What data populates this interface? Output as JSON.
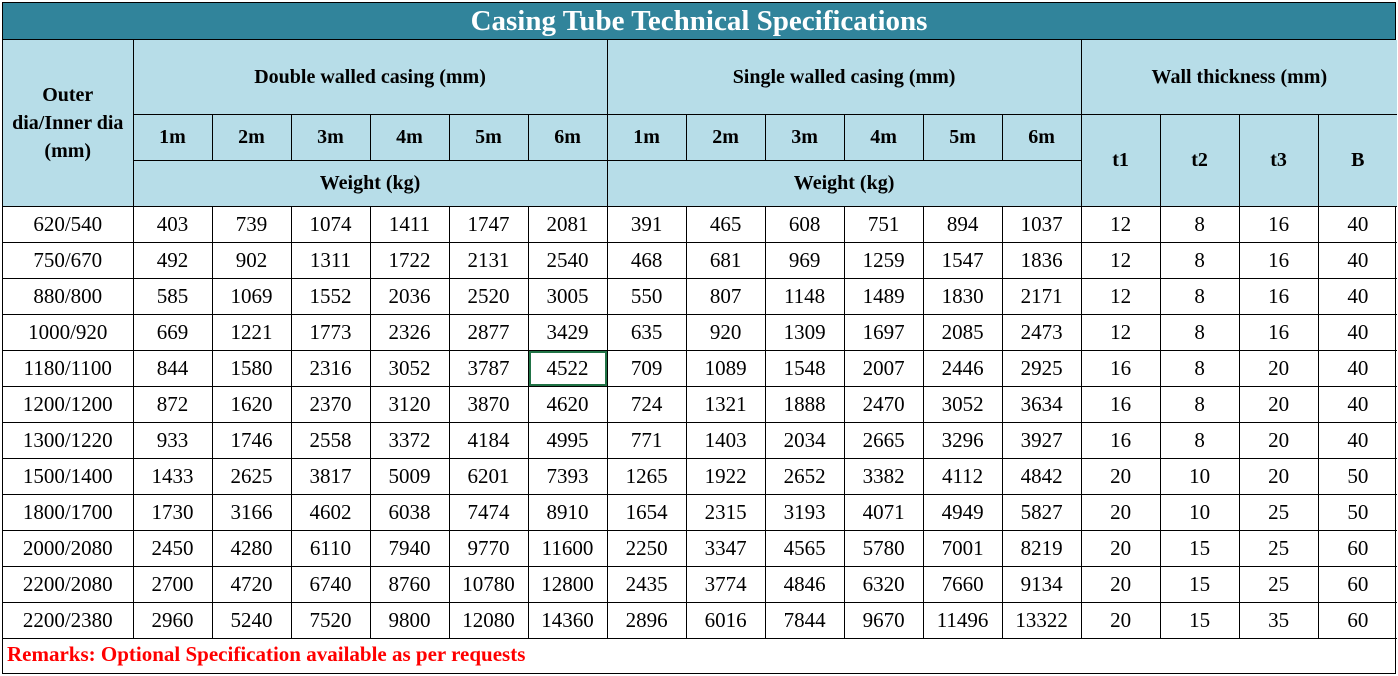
{
  "title": "Casing Tube Technical Specifications",
  "headers": {
    "outer": "Outer dia/Inner dia (mm)",
    "double": "Double walled casing (mm)",
    "single": "Single walled casing (mm)",
    "wall": "Wall thickness (mm)",
    "lengths": [
      "1m",
      "2m",
      "3m",
      "4m",
      "5m",
      "6m"
    ],
    "weight": "Weight (kg)",
    "wall_cols": [
      "t1",
      "t2",
      "t3",
      "B"
    ]
  },
  "rows": [
    {
      "dia": "620/540",
      "double": [
        "403",
        "739",
        "1074",
        "1411",
        "1747",
        "2081"
      ],
      "single": [
        "391",
        "465",
        "608",
        "751",
        "894",
        "1037"
      ],
      "wall": [
        "12",
        "8",
        "16",
        "40"
      ]
    },
    {
      "dia": "750/670",
      "double": [
        "492",
        "902",
        "1311",
        "1722",
        "2131",
        "2540"
      ],
      "single": [
        "468",
        "681",
        "969",
        "1259",
        "1547",
        "1836"
      ],
      "wall": [
        "12",
        "8",
        "16",
        "40"
      ]
    },
    {
      "dia": "880/800",
      "double": [
        "585",
        "1069",
        "1552",
        "2036",
        "2520",
        "3005"
      ],
      "single": [
        "550",
        "807",
        "1148",
        "1489",
        "1830",
        "2171"
      ],
      "wall": [
        "12",
        "8",
        "16",
        "40"
      ]
    },
    {
      "dia": "1000/920",
      "double": [
        "669",
        "1221",
        "1773",
        "2326",
        "2877",
        "3429"
      ],
      "single": [
        "635",
        "920",
        "1309",
        "1697",
        "2085",
        "2473"
      ],
      "wall": [
        "12",
        "8",
        "16",
        "40"
      ]
    },
    {
      "dia": "1180/1100",
      "double": [
        "844",
        "1580",
        "2316",
        "3052",
        "3787",
        "4522"
      ],
      "single": [
        "709",
        "1089",
        "1548",
        "2007",
        "2446",
        "2925"
      ],
      "wall": [
        "16",
        "8",
        "20",
        "40"
      ]
    },
    {
      "dia": "1200/1200",
      "double": [
        "872",
        "1620",
        "2370",
        "3120",
        "3870",
        "4620"
      ],
      "single": [
        "724",
        "1321",
        "1888",
        "2470",
        "3052",
        "3634"
      ],
      "wall": [
        "16",
        "8",
        "20",
        "40"
      ]
    },
    {
      "dia": "1300/1220",
      "double": [
        "933",
        "1746",
        "2558",
        "3372",
        "4184",
        "4995"
      ],
      "single": [
        "771",
        "1403",
        "2034",
        "2665",
        "3296",
        "3927"
      ],
      "wall": [
        "16",
        "8",
        "20",
        "40"
      ]
    },
    {
      "dia": "1500/1400",
      "double": [
        "1433",
        "2625",
        "3817",
        "5009",
        "6201",
        "7393"
      ],
      "single": [
        "1265",
        "1922",
        "2652",
        "3382",
        "4112",
        "4842"
      ],
      "wall": [
        "20",
        "10",
        "20",
        "50"
      ]
    },
    {
      "dia": "1800/1700",
      "double": [
        "1730",
        "3166",
        "4602",
        "6038",
        "7474",
        "8910"
      ],
      "single": [
        "1654",
        "2315",
        "3193",
        "4071",
        "4949",
        "5827"
      ],
      "wall": [
        "20",
        "10",
        "25",
        "50"
      ]
    },
    {
      "dia": "2000/2080",
      "double": [
        "2450",
        "4280",
        "6110",
        "7940",
        "9770",
        "11600"
      ],
      "single": [
        "2250",
        "3347",
        "4565",
        "5780",
        "7001",
        "8219"
      ],
      "wall": [
        "20",
        "15",
        "25",
        "60"
      ]
    },
    {
      "dia": "2200/2080",
      "double": [
        "2700",
        "4720",
        "6740",
        "8760",
        "10780",
        "12800"
      ],
      "single": [
        "2435",
        "3774",
        "4846",
        "6320",
        "7660",
        "9134"
      ],
      "wall": [
        "20",
        "15",
        "25",
        "60"
      ]
    },
    {
      "dia": "2200/2380",
      "double": [
        "2960",
        "5240",
        "7520",
        "9800",
        "12080",
        "14360"
      ],
      "single": [
        "2896",
        "6016",
        "7844",
        "9670",
        "11496",
        "13322"
      ],
      "wall": [
        "20",
        "15",
        "35",
        "60"
      ]
    }
  ],
  "remarks": "Remarks: Optional Specification available as per requests",
  "selected_cell": {
    "row": 4,
    "group": "double",
    "col": 5
  },
  "colors": {
    "title_bg": "#31849b",
    "header_bg": "#b7dde8",
    "remarks": "#ff0000",
    "selection": "#217346"
  }
}
